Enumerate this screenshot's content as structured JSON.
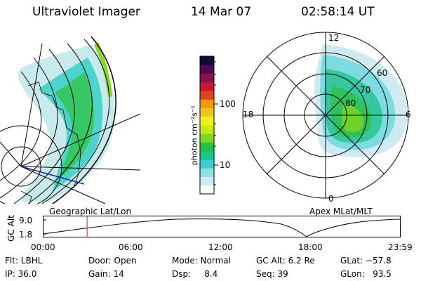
{
  "header": {
    "instrument": "Ultraviolet Imager",
    "date": "14 Mar 07",
    "time": "02:58:14 UT"
  },
  "colorbar": {
    "unit": "photon cm⁻²s⁻¹",
    "ticks": [
      "100",
      "10"
    ],
    "colors": [
      "#ffffff",
      "#cfeaf0",
      "#8fe0e6",
      "#3ccfd2",
      "#19c38a",
      "#27c245",
      "#7ad62a",
      "#c6ea18",
      "#eef21a",
      "#f0c418",
      "#f29a12",
      "#e2421c",
      "#c4183a",
      "#8c1046",
      "#500c52",
      "#18063a"
    ]
  },
  "polar_plot": {
    "mlt_labels": [
      "12",
      "18",
      "6",
      "0"
    ],
    "mlat_labels": [
      "60",
      "70",
      "80"
    ]
  },
  "globe_plot": {
    "label": "Geographic Lat/Lon"
  },
  "altitude_strip": {
    "ylabel": "GC Alt",
    "yticks": [
      "9.0",
      "1.8"
    ],
    "right_label": "Apex MLat/MLT",
    "xticks": [
      "00:00",
      "06:00",
      "12:00",
      "18:00",
      "23:59"
    ],
    "cursor_hour": 2.97
  },
  "footer": {
    "row1": {
      "filter": "Flt: LBHL",
      "door": "Door: Open",
      "mode": "Mode: Normal",
      "gc_alt": "GC Alt: 6.2 Re",
      "glat": "GLat: −57.8"
    },
    "row2": {
      "ip": "IP: 36.0",
      "gain": "Gain: 14",
      "dsp": "Dsp:     8.4",
      "seq": "Seq: 39",
      "glon": "GLon:   93.5"
    }
  }
}
